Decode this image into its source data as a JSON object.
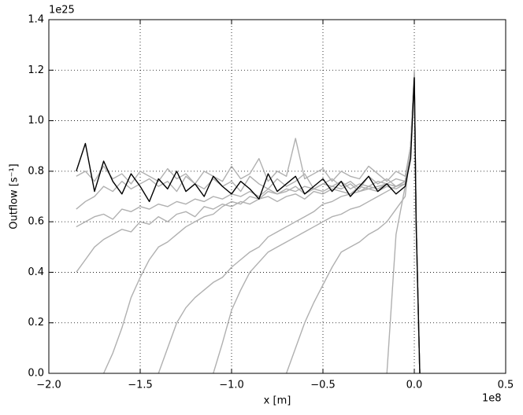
{
  "chart_data": {
    "type": "line",
    "x_label": "x [m]",
    "y_label": "Outflow [s⁻¹]",
    "x_offset_label": "1e8",
    "y_offset_label": "1e25",
    "xlim": [
      -2,
      0.5
    ],
    "xticks": [
      {
        "value": -2,
        "label": "−2.0"
      },
      {
        "value": -1.5,
        "label": "−1.5"
      },
      {
        "value": -1,
        "label": "−1.0"
      },
      {
        "value": -0.5,
        "label": "−0.5"
      },
      {
        "value": 0,
        "label": "0.0"
      },
      0.5
    ],
    "ylim": [
      0,
      1.4
    ],
    "yticks": [
      {
        "value": 0,
        "label": "0.0"
      },
      0.2,
      0.4,
      0.6,
      0.8,
      {
        "value": 1,
        "label": "1.0"
      },
      1.2,
      1.4
    ],
    "grid": true,
    "x": [
      -1.85,
      -1.8,
      -1.75,
      -1.7,
      -1.65,
      -1.6,
      -1.55,
      -1.5,
      -1.45,
      -1.4,
      -1.35,
      -1.3,
      -1.25,
      -1.2,
      -1.15,
      -1.1,
      -1.05,
      -1.0,
      -0.95,
      -0.9,
      -0.85,
      -0.8,
      -0.75,
      -0.7,
      -0.65,
      -0.6,
      -0.55,
      -0.5,
      -0.45,
      -0.4,
      -0.35,
      -0.3,
      -0.25,
      -0.2,
      -0.15,
      -0.1,
      -0.05,
      -0.02,
      0.0,
      0.01,
      0.03
    ],
    "series": [
      {
        "color": "#b0b0b0",
        "values": [
          0.78,
          0.8,
          0.76,
          0.82,
          0.77,
          0.79,
          0.75,
          0.8,
          0.78,
          0.76,
          0.81,
          0.77,
          0.79,
          0.75,
          0.8,
          0.78,
          0.76,
          0.82,
          0.77,
          0.79,
          0.85,
          0.76,
          0.8,
          0.78,
          0.93,
          0.77,
          0.79,
          0.81,
          0.76,
          0.8,
          0.78,
          0.77,
          0.82,
          0.79,
          0.76,
          0.8,
          0.78,
          0.9,
          1.2,
          0.6,
          0.0
        ]
      },
      {
        "color": "#b0b0b0",
        "values": [
          0.65,
          0.68,
          0.7,
          0.74,
          0.72,
          0.76,
          0.73,
          0.75,
          0.77,
          0.74,
          0.76,
          0.72,
          0.78,
          0.75,
          0.73,
          0.77,
          0.74,
          0.76,
          0.72,
          0.78,
          0.75,
          0.73,
          0.77,
          0.74,
          0.76,
          0.79,
          0.73,
          0.75,
          0.77,
          0.74,
          0.76,
          0.73,
          0.78,
          0.75,
          0.77,
          0.74,
          0.76,
          0.9,
          1.19,
          0.6,
          0.0
        ]
      },
      {
        "color": "#b0b0b0",
        "values": [
          0.58,
          0.6,
          0.62,
          0.63,
          0.61,
          0.65,
          0.64,
          0.66,
          0.65,
          0.67,
          0.66,
          0.68,
          0.67,
          0.69,
          0.68,
          0.7,
          0.69,
          0.71,
          0.7,
          0.72,
          0.7,
          0.73,
          0.71,
          0.72,
          0.74,
          0.71,
          0.73,
          0.72,
          0.74,
          0.73,
          0.75,
          0.72,
          0.74,
          0.73,
          0.75,
          0.74,
          0.76,
          0.9,
          1.18,
          0.6,
          0.0
        ]
      },
      {
        "color": "#b0b0b0",
        "values": [
          0.4,
          0.45,
          0.5,
          0.53,
          0.55,
          0.57,
          0.56,
          0.6,
          0.59,
          0.62,
          0.6,
          0.63,
          0.64,
          0.62,
          0.66,
          0.65,
          0.67,
          0.66,
          0.68,
          0.67,
          0.69,
          0.7,
          0.68,
          0.7,
          0.71,
          0.69,
          0.72,
          0.71,
          0.73,
          0.72,
          0.71,
          0.74,
          0.73,
          0.72,
          0.74,
          0.73,
          0.75,
          0.9,
          1.18,
          0.6,
          0.0
        ]
      },
      {
        "color": "#b0b0b0",
        "values": [
          null,
          null,
          null,
          0.0,
          0.08,
          0.18,
          0.3,
          0.38,
          0.45,
          0.5,
          0.52,
          0.55,
          0.58,
          0.6,
          0.62,
          0.63,
          0.66,
          0.68,
          0.67,
          0.7,
          0.69,
          0.72,
          0.71,
          0.73,
          0.72,
          0.74,
          0.73,
          0.75,
          0.74,
          0.76,
          0.73,
          0.75,
          0.74,
          0.76,
          0.75,
          0.77,
          0.76,
          0.9,
          1.18,
          0.6,
          0.0
        ]
      },
      {
        "color": "#b0b0b0",
        "values": [
          null,
          null,
          null,
          null,
          null,
          null,
          null,
          null,
          null,
          0.0,
          0.1,
          0.2,
          0.26,
          0.3,
          0.33,
          0.36,
          0.38,
          0.42,
          0.45,
          0.48,
          0.5,
          0.54,
          0.56,
          0.58,
          0.6,
          0.62,
          0.64,
          0.67,
          0.68,
          0.7,
          0.71,
          0.72,
          0.73,
          0.74,
          0.75,
          0.74,
          0.76,
          0.9,
          1.18,
          0.6,
          0.0
        ]
      },
      {
        "color": "#b0b0b0",
        "values": [
          null,
          null,
          null,
          null,
          null,
          null,
          null,
          null,
          null,
          null,
          null,
          null,
          null,
          null,
          null,
          0.0,
          0.12,
          0.25,
          0.33,
          0.4,
          0.44,
          0.48,
          0.5,
          0.52,
          0.54,
          0.56,
          0.58,
          0.6,
          0.62,
          0.63,
          0.65,
          0.66,
          0.68,
          0.7,
          0.72,
          0.74,
          0.75,
          0.9,
          1.18,
          0.6,
          0.0
        ]
      },
      {
        "color": "#b0b0b0",
        "values": [
          null,
          null,
          null,
          null,
          null,
          null,
          null,
          null,
          null,
          null,
          null,
          null,
          null,
          null,
          null,
          null,
          null,
          null,
          null,
          null,
          null,
          null,
          null,
          0.0,
          0.1,
          0.2,
          0.28,
          0.35,
          0.42,
          0.48,
          0.5,
          0.52,
          0.55,
          0.57,
          0.6,
          0.65,
          0.7,
          0.9,
          1.18,
          0.6,
          0.0
        ]
      },
      {
        "color": "#b0b0b0",
        "values": [
          null,
          null,
          null,
          null,
          null,
          null,
          null,
          null,
          null,
          null,
          null,
          null,
          null,
          null,
          null,
          null,
          null,
          null,
          null,
          null,
          null,
          null,
          null,
          null,
          null,
          null,
          null,
          null,
          null,
          null,
          null,
          null,
          null,
          null,
          0.0,
          0.55,
          0.74,
          0.9,
          1.18,
          0.6,
          0.0
        ]
      },
      {
        "color": "#000000",
        "values": [
          0.8,
          0.91,
          0.72,
          0.84,
          0.76,
          0.71,
          0.79,
          0.74,
          0.68,
          0.77,
          0.73,
          0.8,
          0.72,
          0.75,
          0.7,
          0.78,
          0.74,
          0.71,
          0.76,
          0.73,
          0.69,
          0.79,
          0.72,
          0.75,
          0.78,
          0.71,
          0.74,
          0.77,
          0.72,
          0.76,
          0.7,
          0.74,
          0.78,
          0.72,
          0.75,
          0.71,
          0.74,
          0.85,
          1.17,
          0.6,
          0.0
        ]
      }
    ]
  }
}
